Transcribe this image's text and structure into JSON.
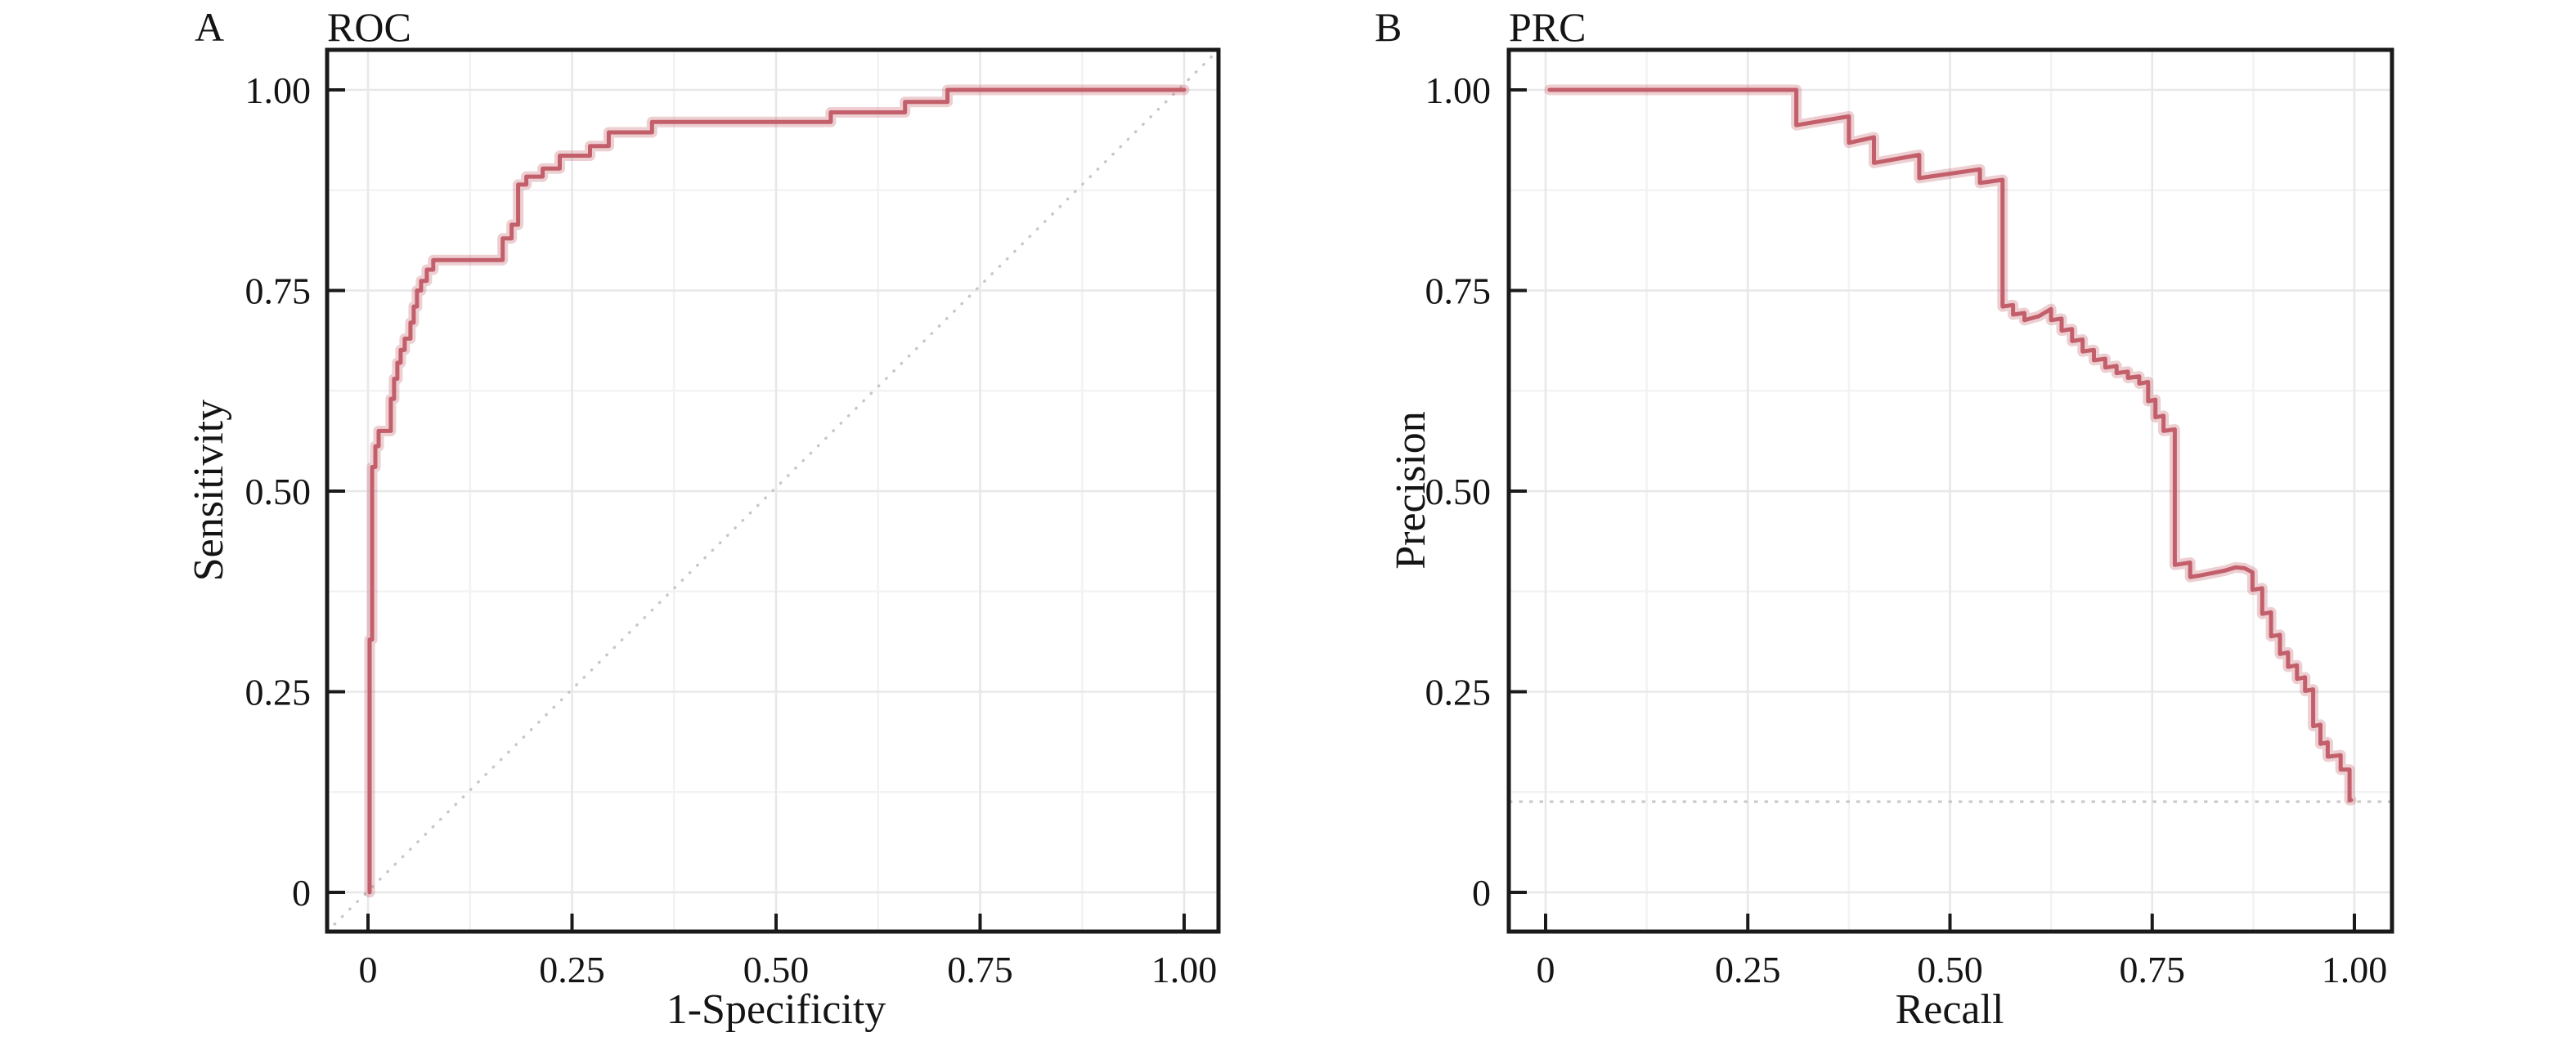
{
  "figure": {
    "background": "#ffffff",
    "description": "Two-panel evaluation figure: ROC curve and Precision-Recall curve"
  },
  "style": {
    "curve_color": "#c25f6b",
    "curve_glow_color": "rgba(194,95,107,0.30)",
    "frame_color": "#1a1a1a",
    "tick_color": "#1a1a1a",
    "text_color": "#141414",
    "grid_major_color": "#e8e8eb",
    "grid_minor_color": "#f3f3f5",
    "reference_color": "#c7c7c7"
  },
  "chart_data": [
    {
      "type": "line",
      "panel_label": "A",
      "title": "ROC",
      "xlabel": "1-Specificity",
      "ylabel": "Sensitivity",
      "xlim": [
        0,
        1
      ],
      "ylim": [
        0,
        1
      ],
      "x_ticks": [
        0,
        0.25,
        0.5,
        0.75,
        1
      ],
      "x_tick_labels": [
        "0",
        "0.25",
        "0.50",
        "0.75",
        "1.00"
      ],
      "y_ticks": [
        0,
        0.25,
        0.5,
        0.75,
        1
      ],
      "y_tick_labels": [
        "0",
        "0.25",
        "0.50",
        "0.75",
        "1.00"
      ],
      "grid": {
        "visible": true,
        "minor_step": 0.125,
        "major_step": 0.25
      },
      "legend": "none",
      "reference_line": {
        "kind": "diagonal",
        "style": "dotted",
        "from": [
          0,
          0
        ],
        "to": [
          1,
          1
        ]
      },
      "series": [
        {
          "name": "ROC curve",
          "step": true,
          "points": [
            [
              0.002,
              0
            ],
            [
              0.002,
              0.315
            ],
            [
              0.005,
              0.315
            ],
            [
              0.005,
              0.53
            ],
            [
              0.009,
              0.53
            ],
            [
              0.009,
              0.556
            ],
            [
              0.013,
              0.556
            ],
            [
              0.013,
              0.575
            ],
            [
              0.028,
              0.575
            ],
            [
              0.028,
              0.615
            ],
            [
              0.032,
              0.615
            ],
            [
              0.032,
              0.64
            ],
            [
              0.036,
              0.64
            ],
            [
              0.036,
              0.66
            ],
            [
              0.04,
              0.66
            ],
            [
              0.04,
              0.676
            ],
            [
              0.045,
              0.676
            ],
            [
              0.045,
              0.69
            ],
            [
              0.052,
              0.69
            ],
            [
              0.052,
              0.71
            ],
            [
              0.056,
              0.71
            ],
            [
              0.056,
              0.73
            ],
            [
              0.06,
              0.73
            ],
            [
              0.06,
              0.75
            ],
            [
              0.065,
              0.75
            ],
            [
              0.065,
              0.762
            ],
            [
              0.072,
              0.762
            ],
            [
              0.072,
              0.776
            ],
            [
              0.08,
              0.776
            ],
            [
              0.08,
              0.788
            ],
            [
              0.165,
              0.788
            ],
            [
              0.165,
              0.815
            ],
            [
              0.176,
              0.815
            ],
            [
              0.176,
              0.832
            ],
            [
              0.184,
              0.832
            ],
            [
              0.184,
              0.882
            ],
            [
              0.194,
              0.882
            ],
            [
              0.194,
              0.892
            ],
            [
              0.214,
              0.892
            ],
            [
              0.214,
              0.902
            ],
            [
              0.235,
              0.902
            ],
            [
              0.235,
              0.918
            ],
            [
              0.272,
              0.918
            ],
            [
              0.272,
              0.93
            ],
            [
              0.295,
              0.93
            ],
            [
              0.295,
              0.947
            ],
            [
              0.348,
              0.947
            ],
            [
              0.348,
              0.96
            ],
            [
              0.567,
              0.96
            ],
            [
              0.567,
              0.972
            ],
            [
              0.658,
              0.972
            ],
            [
              0.658,
              0.985
            ],
            [
              0.71,
              0.985
            ],
            [
              0.71,
              1.0
            ],
            [
              1.0,
              1.0
            ]
          ]
        }
      ]
    },
    {
      "type": "line",
      "panel_label": "B",
      "title": "PRC",
      "xlabel": "Recall",
      "ylabel": "Precision",
      "xlim": [
        0,
        1
      ],
      "ylim": [
        0,
        1
      ],
      "x_ticks": [
        0,
        0.25,
        0.5,
        0.75,
        1
      ],
      "x_tick_labels": [
        "0",
        "0.25",
        "0.50",
        "0.75",
        "1.00"
      ],
      "y_ticks": [
        0,
        0.25,
        0.5,
        0.75,
        1
      ],
      "y_tick_labels": [
        "0",
        "0.25",
        "0.50",
        "0.75",
        "1.00"
      ],
      "grid": {
        "visible": true,
        "minor_step": 0.125,
        "major_step": 0.25
      },
      "legend": "none",
      "reference_line": {
        "kind": "horizontal",
        "style": "dotted",
        "y": 0.113
      },
      "series": [
        {
          "name": "PRC curve",
          "step": true,
          "points": [
            [
              0.005,
              1.0
            ],
            [
              0.31,
              1.0
            ],
            [
              0.31,
              0.956
            ],
            [
              0.375,
              0.967
            ],
            [
              0.375,
              0.934
            ],
            [
              0.406,
              0.941
            ],
            [
              0.406,
              0.909
            ],
            [
              0.462,
              0.919
            ],
            [
              0.462,
              0.89
            ],
            [
              0.537,
              0.901
            ],
            [
              0.537,
              0.884
            ],
            [
              0.565,
              0.888
            ],
            [
              0.565,
              0.73
            ],
            [
              0.578,
              0.732
            ],
            [
              0.578,
              0.72
            ],
            [
              0.592,
              0.722
            ],
            [
              0.592,
              0.713
            ],
            [
              0.61,
              0.718
            ],
            [
              0.625,
              0.727
            ],
            [
              0.625,
              0.713
            ],
            [
              0.638,
              0.715
            ],
            [
              0.638,
              0.7
            ],
            [
              0.651,
              0.702
            ],
            [
              0.651,
              0.687
            ],
            [
              0.664,
              0.689
            ],
            [
              0.664,
              0.674
            ],
            [
              0.678,
              0.676
            ],
            [
              0.678,
              0.663
            ],
            [
              0.692,
              0.665
            ],
            [
              0.692,
              0.654
            ],
            [
              0.706,
              0.656
            ],
            [
              0.706,
              0.647
            ],
            [
              0.72,
              0.649
            ],
            [
              0.72,
              0.641
            ],
            [
              0.734,
              0.643
            ],
            [
              0.734,
              0.634
            ],
            [
              0.745,
              0.636
            ],
            [
              0.745,
              0.612
            ],
            [
              0.754,
              0.614
            ],
            [
              0.754,
              0.592
            ],
            [
              0.764,
              0.594
            ],
            [
              0.764,
              0.575
            ],
            [
              0.778,
              0.577
            ],
            [
              0.778,
              0.408
            ],
            [
              0.797,
              0.411
            ],
            [
              0.797,
              0.393
            ],
            [
              0.81,
              0.395
            ],
            [
              0.825,
              0.398
            ],
            [
              0.84,
              0.401
            ],
            [
              0.853,
              0.405
            ],
            [
              0.864,
              0.404
            ],
            [
              0.874,
              0.399
            ],
            [
              0.874,
              0.377
            ],
            [
              0.886,
              0.379
            ],
            [
              0.886,
              0.347
            ],
            [
              0.897,
              0.349
            ],
            [
              0.897,
              0.319
            ],
            [
              0.908,
              0.321
            ],
            [
              0.908,
              0.297
            ],
            [
              0.918,
              0.299
            ],
            [
              0.918,
              0.281
            ],
            [
              0.929,
              0.283
            ],
            [
              0.929,
              0.266
            ],
            [
              0.939,
              0.268
            ],
            [
              0.939,
              0.251
            ],
            [
              0.949,
              0.253
            ],
            [
              0.949,
              0.207
            ],
            [
              0.958,
              0.209
            ],
            [
              0.958,
              0.185
            ],
            [
              0.967,
              0.187
            ],
            [
              0.967,
              0.169
            ],
            [
              0.983,
              0.171
            ],
            [
              0.983,
              0.153
            ],
            [
              0.994,
              0.153
            ],
            [
              0.994,
              0.115
            ],
            [
              0.996,
              0.115
            ]
          ]
        }
      ]
    }
  ]
}
